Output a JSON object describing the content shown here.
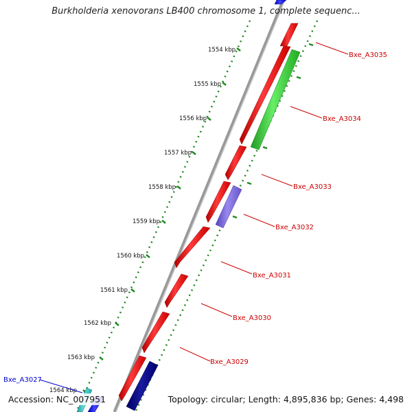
{
  "title": "Burkholderia xenovorans LB400 chromosome 1, complete sequenc...",
  "footer": {
    "accession": "Accession: NC_007951",
    "summary": "Topology: circular; Length: 4,895,836 bp; Genes: 4,498"
  },
  "colors": {
    "forward_gene": "#ff0000",
    "green_gene": "#33cc33",
    "purple_gene": "#7766dd",
    "navy_gene": "#000080",
    "blue_gene": "#0000ff",
    "cyan_gene": "#33cccc",
    "backbone": "#888888",
    "tick": "#228822",
    "red_label": "#cc0000",
    "blue_label": "#0000cc"
  },
  "kbp_ticks": [
    "1554 kbp",
    "1555 kbp",
    "1556 kbp",
    "1557 kbp",
    "1558 kbp",
    "1559 kbp",
    "1560 kbp",
    "1561 kbp",
    "1562 kbp",
    "1563 kbp",
    "1564 kbp"
  ],
  "gene_labels": [
    {
      "name": "Bxe_A3035",
      "color": "red"
    },
    {
      "name": "Bxe_A3034",
      "color": "red"
    },
    {
      "name": "Bxe_A3033",
      "color": "red"
    },
    {
      "name": "Bxe_A3032",
      "color": "red"
    },
    {
      "name": "Bxe_A3031",
      "color": "red"
    },
    {
      "name": "Bxe_A3030",
      "color": "red"
    },
    {
      "name": "Bxe_A3029",
      "color": "red"
    },
    {
      "name": "Bxe_A3027",
      "color": "blue"
    }
  ]
}
